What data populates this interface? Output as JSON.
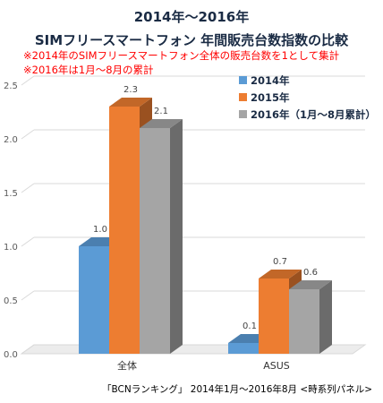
{
  "chart_data": {
    "type": "bar",
    "title": "2014年～2016年",
    "subtitle": "SIMフリースマートフォン 年間販売台数指数の比較",
    "notes": [
      "※2014年のSIMフリースマートフォン全体の販売台数を1として集計",
      "※2016年は1月～8月の累計"
    ],
    "categories": [
      "全体",
      "ASUS"
    ],
    "series": [
      {
        "name": "2014年",
        "values": [
          1.0,
          0.1
        ],
        "color": "#5b9bd5"
      },
      {
        "name": "2015年",
        "values": [
          2.3,
          0.7
        ],
        "color": "#ed7d31"
      },
      {
        "name": "2016年（1月～8月累計）",
        "values": [
          2.1,
          0.6
        ],
        "color": "#a5a5a5"
      }
    ],
    "value_labels": [
      [
        "1.0",
        "0.1"
      ],
      [
        "2.3",
        "0.7"
      ],
      [
        "2.1",
        "0.6"
      ]
    ],
    "ylim": [
      0,
      2.5
    ],
    "yticks": [
      "0.0",
      "0.5",
      "1.0",
      "1.5",
      "2.0",
      "2.5"
    ],
    "grid": true,
    "legend_position": "top-right",
    "source": "「BCNランキング」 2014年1月～2016年8月 <時系列パネル>"
  }
}
